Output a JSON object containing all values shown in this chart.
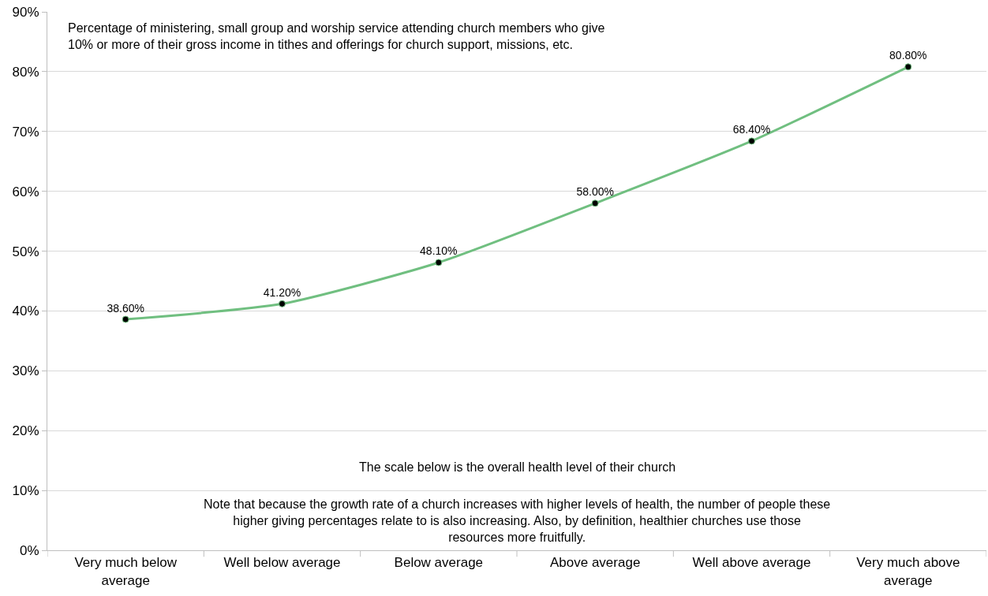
{
  "chart_data": {
    "type": "line",
    "title": "Percentage of ministering, small group and worship service attending church members who give 10% or more of their gross income in tithes and offerings for church support, missions, etc.",
    "annotations": [
      "The scale below is the overall health level of their church",
      "Note that because the growth rate of a church increases with higher levels of health, the number of people these higher giving percentages relate to is also increasing. Also, by definition, healthier churches use those resources more fruitfully."
    ],
    "categories": [
      "Very much below average",
      "Well below average",
      "Below average",
      "Above average",
      "Well above average",
      "Very much above average"
    ],
    "series": [
      {
        "color": "#70bf80",
        "values": [
          38.6,
          41.2,
          48.1,
          58.0,
          68.4,
          80.8
        ],
        "value_labels": [
          "38.60%",
          "41.20%",
          "48.10%",
          "58.00%",
          "68.40%",
          "80.80%"
        ]
      }
    ],
    "ylim": [
      0,
      90
    ],
    "yticks": [
      {
        "value": 0,
        "label": "0%"
      },
      {
        "value": 10,
        "label": "10%"
      },
      {
        "value": 20,
        "label": "20%"
      },
      {
        "value": 30,
        "label": "30%"
      },
      {
        "value": 40,
        "label": "40%"
      },
      {
        "value": 50,
        "label": "50%"
      },
      {
        "value": 60,
        "label": "60%"
      },
      {
        "value": 70,
        "label": "70%"
      },
      {
        "value": 80,
        "label": "80%"
      },
      {
        "value": 90,
        "label": "90%"
      }
    ],
    "grid": "y",
    "marker": "circle",
    "line_style": "solid"
  }
}
